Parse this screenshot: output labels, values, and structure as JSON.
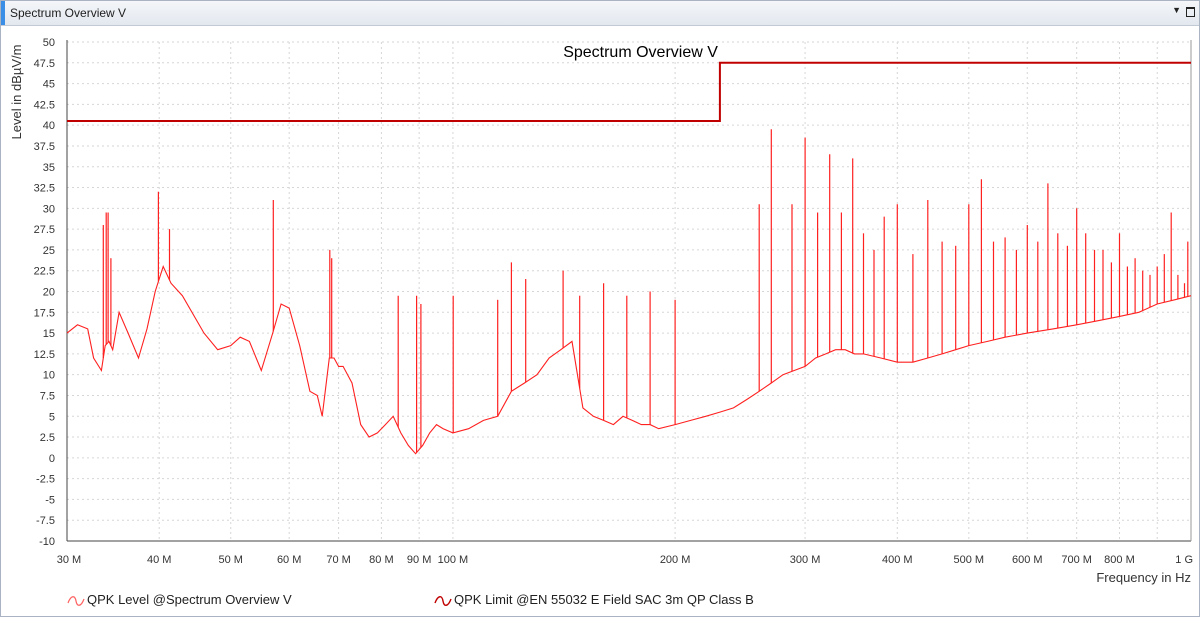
{
  "window": {
    "title": "Spectrum Overview V"
  },
  "chart_data": {
    "type": "line",
    "title": "Spectrum Overview V",
    "xlabel": "Frequency in Hz",
    "ylabel": "Level in dBµV/m",
    "xscale": "log",
    "xlim": [
      30,
      1000
    ],
    "ylim": [
      -10,
      50
    ],
    "grid": true,
    "legend_position": "bottom",
    "yticks": [
      -10,
      -7.5,
      -5,
      -2.5,
      0,
      2.5,
      5,
      7.5,
      10,
      12.5,
      15,
      17.5,
      20,
      22.5,
      25,
      27.5,
      30,
      32.5,
      35,
      37.5,
      40,
      42.5,
      45,
      47.5,
      50
    ],
    "xticks": [
      {
        "value": 30,
        "label": "30 M"
      },
      {
        "value": 40,
        "label": "40 M"
      },
      {
        "value": 50,
        "label": "50 M"
      },
      {
        "value": 60,
        "label": "60 M"
      },
      {
        "value": 70,
        "label": "70 M"
      },
      {
        "value": 80,
        "label": "80 M"
      },
      {
        "value": 90,
        "label": "90 M"
      },
      {
        "value": 100,
        "label": "100 M"
      },
      {
        "value": 200,
        "label": "200 M"
      },
      {
        "value": 300,
        "label": "300 M"
      },
      {
        "value": 400,
        "label": "400 M"
      },
      {
        "value": 500,
        "label": "500 M"
      },
      {
        "value": 600,
        "label": "600 M"
      },
      {
        "value": 700,
        "label": "700 M"
      },
      {
        "value": 800,
        "label": "800 M"
      },
      {
        "value": 1000,
        "label": "1 G"
      }
    ],
    "series": [
      {
        "name": "QPK Level @Spectrum Overview V",
        "color": "#ff2020",
        "x": [
          30,
          31,
          32,
          32.6,
          33.4,
          33.8,
          34.2,
          34.6,
          35.3,
          36.3,
          37.5,
          38.5,
          39.5,
          40.5,
          41.5,
          43,
          46,
          48,
          50,
          51.5,
          53,
          55,
          57,
          58.5,
          60,
          62,
          64,
          65.5,
          66.5,
          68,
          69,
          70,
          71,
          73,
          75,
          77,
          79,
          81,
          83,
          85,
          87,
          89,
          91,
          93,
          95,
          97,
          100,
          105,
          110,
          115,
          120,
          125,
          130,
          135,
          140,
          145,
          150,
          155,
          160,
          165,
          170,
          175,
          180,
          185,
          190,
          200,
          210,
          220,
          230,
          240,
          250,
          260,
          270,
          280,
          290,
          300,
          310,
          320,
          330,
          340,
          350,
          360,
          380,
          400,
          420,
          440,
          460,
          480,
          500,
          530,
          560,
          600,
          650,
          700,
          750,
          800,
          850,
          900,
          950,
          1000
        ],
        "y": [
          15,
          16,
          15.5,
          12,
          10.5,
          13.5,
          14,
          13,
          17.5,
          15,
          12,
          15.5,
          20,
          23,
          21,
          19.5,
          15,
          13,
          13.5,
          14.5,
          14,
          10.5,
          15,
          18.5,
          18,
          13.5,
          8,
          7.5,
          5,
          12,
          12,
          11,
          11,
          9,
          4,
          2.5,
          3,
          4,
          5,
          3,
          1.5,
          0.5,
          1.5,
          3,
          4,
          3.5,
          3,
          3.5,
          4.5,
          5,
          8,
          9,
          10,
          12,
          13,
          14,
          6,
          5,
          4.5,
          4,
          5,
          4.5,
          4,
          4,
          3.5,
          4,
          4.5,
          5,
          5.5,
          6,
          7,
          8,
          9,
          10,
          10.5,
          11,
          12,
          12.5,
          13,
          13,
          12.5,
          12.5,
          12,
          11.5,
          11.5,
          12,
          12.5,
          13,
          13.5,
          14,
          14.5,
          15,
          15.5,
          16,
          16.5,
          17,
          17.5,
          18.5,
          19,
          19.5
        ],
        "peaks": [
          {
            "x": 33.6,
            "y": 28
          },
          {
            "x": 33.9,
            "y": 29.5
          },
          {
            "x": 34.1,
            "y": 29.5
          },
          {
            "x": 34.4,
            "y": 24
          },
          {
            "x": 39.9,
            "y": 32
          },
          {
            "x": 41.3,
            "y": 27.5
          },
          {
            "x": 57.1,
            "y": 31
          },
          {
            "x": 68.1,
            "y": 25
          },
          {
            "x": 68.5,
            "y": 24
          },
          {
            "x": 84.3,
            "y": 19.5
          },
          {
            "x": 89.3,
            "y": 19.5
          },
          {
            "x": 90.5,
            "y": 18.5
          },
          {
            "x": 100.1,
            "y": 19.5
          },
          {
            "x": 115,
            "y": 19
          },
          {
            "x": 120,
            "y": 23.5
          },
          {
            "x": 125.5,
            "y": 21.5
          },
          {
            "x": 141,
            "y": 22.5
          },
          {
            "x": 148.5,
            "y": 19.5
          },
          {
            "x": 160,
            "y": 21
          },
          {
            "x": 172,
            "y": 19.5
          },
          {
            "x": 185,
            "y": 20
          },
          {
            "x": 200,
            "y": 19
          },
          {
            "x": 260,
            "y": 30.5
          },
          {
            "x": 270,
            "y": 39.5
          },
          {
            "x": 288,
            "y": 30.5
          },
          {
            "x": 300,
            "y": 38.5
          },
          {
            "x": 312,
            "y": 29.5
          },
          {
            "x": 324,
            "y": 36.5
          },
          {
            "x": 336,
            "y": 29.5
          },
          {
            "x": 348,
            "y": 36
          },
          {
            "x": 360,
            "y": 27
          },
          {
            "x": 372,
            "y": 25
          },
          {
            "x": 384,
            "y": 29
          },
          {
            "x": 400,
            "y": 30.5
          },
          {
            "x": 420,
            "y": 24.5
          },
          {
            "x": 440,
            "y": 31
          },
          {
            "x": 460,
            "y": 26
          },
          {
            "x": 480,
            "y": 25.5
          },
          {
            "x": 500,
            "y": 30.5
          },
          {
            "x": 520,
            "y": 33.5
          },
          {
            "x": 540,
            "y": 26
          },
          {
            "x": 560,
            "y": 26.5
          },
          {
            "x": 580,
            "y": 25
          },
          {
            "x": 600,
            "y": 28
          },
          {
            "x": 620,
            "y": 26
          },
          {
            "x": 640,
            "y": 33
          },
          {
            "x": 660,
            "y": 27
          },
          {
            "x": 680,
            "y": 25.5
          },
          {
            "x": 700,
            "y": 30
          },
          {
            "x": 720,
            "y": 27
          },
          {
            "x": 740,
            "y": 25
          },
          {
            "x": 760,
            "y": 25
          },
          {
            "x": 780,
            "y": 23.5
          },
          {
            "x": 800,
            "y": 27
          },
          {
            "x": 820,
            "y": 23
          },
          {
            "x": 840,
            "y": 24
          },
          {
            "x": 860,
            "y": 22.5
          },
          {
            "x": 880,
            "y": 22
          },
          {
            "x": 900,
            "y": 23
          },
          {
            "x": 920,
            "y": 24.5
          },
          {
            "x": 940,
            "y": 29.5
          },
          {
            "x": 960,
            "y": 22
          },
          {
            "x": 980,
            "y": 21
          },
          {
            "x": 990,
            "y": 26
          }
        ]
      },
      {
        "name": "QPK Limit @EN 55032 E Field SAC 3m QP Class B",
        "color": "#c00000",
        "x": [
          30,
          230,
          230,
          1000
        ],
        "y": [
          40.5,
          40.5,
          47.5,
          47.5
        ]
      }
    ]
  }
}
